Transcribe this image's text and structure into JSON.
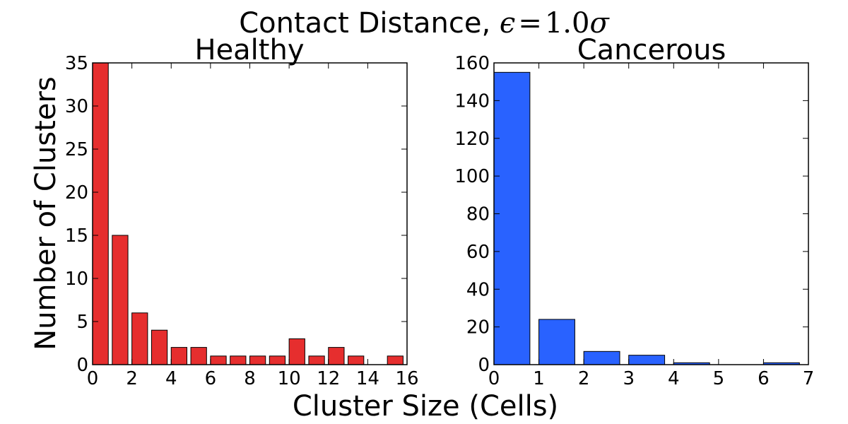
{
  "figure": {
    "suptitle": {
      "text": "Contact Distance, ",
      "math": {
        "epsilon": "ϵ",
        "equals": "=",
        "value": "1.0",
        "sigma": "σ"
      }
    },
    "shared_xlabel": "Cluster Size (Cells)",
    "shared_ylabel": "Number of Clusters"
  },
  "chart_data": [
    {
      "type": "bar",
      "title": "Healthy",
      "color": "#e62e2e",
      "xlim": [
        0,
        16
      ],
      "ylim": [
        0,
        35
      ],
      "xticks": [
        0,
        2,
        4,
        6,
        8,
        10,
        12,
        14,
        16
      ],
      "yticks": [
        0,
        5,
        10,
        15,
        20,
        25,
        30,
        35
      ],
      "x": [
        0,
        1,
        2,
        3,
        4,
        5,
        6,
        7,
        8,
        9,
        10,
        11,
        12,
        13,
        14,
        15
      ],
      "values": [
        35,
        15,
        6,
        4,
        2,
        2,
        1,
        1,
        1,
        1,
        3,
        1,
        2,
        1,
        0,
        1
      ],
      "bar_width": 0.8,
      "grid": false
    },
    {
      "type": "bar",
      "title": "Cancerous",
      "color": "#2962ff",
      "xlim": [
        0,
        7
      ],
      "ylim": [
        0,
        160
      ],
      "xticks": [
        0,
        1,
        2,
        3,
        4,
        5,
        6,
        7
      ],
      "yticks": [
        0,
        20,
        40,
        60,
        80,
        100,
        120,
        140,
        160
      ],
      "x": [
        0,
        1,
        2,
        3,
        4,
        5,
        6
      ],
      "values": [
        155,
        24,
        7,
        5,
        1,
        0,
        1
      ],
      "bar_width": 0.8,
      "grid": false
    }
  ]
}
